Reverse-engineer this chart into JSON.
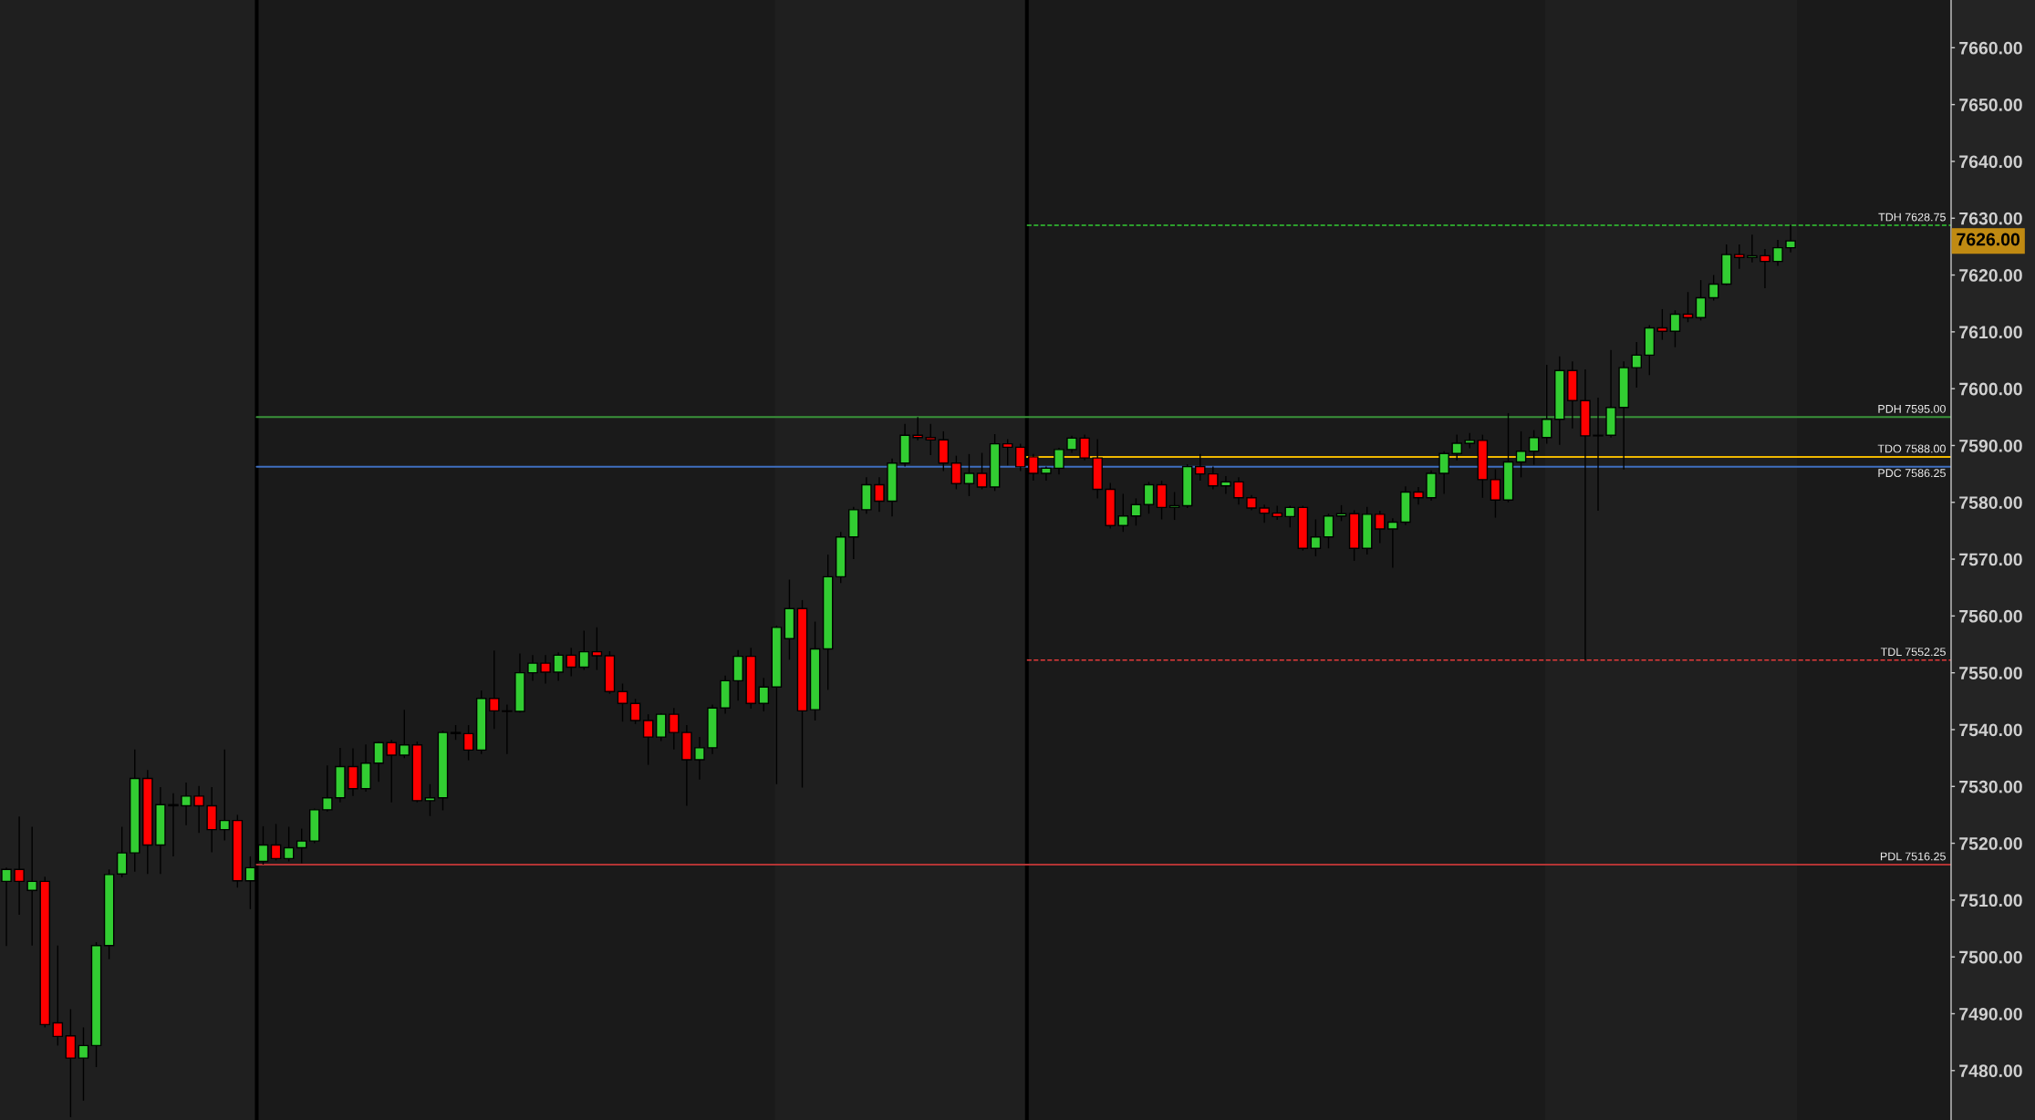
{
  "chart_data": {
    "type": "candlestick",
    "categories": [
      null,
      null,
      null,
      null,
      null,
      null,
      null,
      null,
      null,
      null,
      null,
      null,
      null,
      null,
      null,
      null,
      null,
      null,
      null,
      null,
      null,
      null,
      null,
      null,
      null,
      null,
      null,
      null,
      null,
      null,
      null,
      null,
      null,
      null,
      null,
      null,
      null,
      null,
      null,
      null,
      null,
      null,
      null,
      null,
      null,
      null,
      null,
      null,
      null,
      null,
      null,
      null,
      null,
      null,
      null,
      null,
      null,
      null,
      null,
      null,
      null,
      null,
      null,
      null,
      null,
      null,
      null,
      null,
      null,
      null,
      null,
      null,
      null,
      null,
      null,
      null,
      null,
      null,
      null,
      null,
      null,
      null,
      null,
      null,
      null,
      null,
      null,
      null,
      null,
      null,
      null,
      null,
      null,
      null,
      null,
      null,
      null,
      null,
      null,
      null,
      null,
      null,
      null,
      null,
      null,
      null,
      null,
      null,
      null,
      null,
      null,
      null,
      null,
      null,
      null,
      null,
      null,
      null,
      null,
      null,
      null,
      null,
      null,
      null,
      null,
      null,
      null,
      null,
      null,
      null,
      null,
      null,
      null,
      null,
      null,
      null,
      null,
      null,
      null,
      null,
      null,
      null,
      null,
      null,
      null,
      null,
      null,
      null,
      null,
      null,
      null,
      null
    ],
    "ohlc": [
      [
        7513.3,
        7515.7,
        7501.9,
        7515.4
      ],
      [
        7515.4,
        7524.7,
        7507.4,
        7513.3
      ],
      [
        7511.7,
        7522.9,
        7502.0,
        7513.3
      ],
      [
        7513.3,
        7514.1,
        7487.6,
        7488.1
      ],
      [
        7488.4,
        7502.0,
        7484.4,
        7486.0
      ],
      [
        7486.1,
        7490.8,
        7471.8,
        7482.2
      ],
      [
        7482.2,
        7487.6,
        7474.7,
        7484.4
      ],
      [
        7484.4,
        7502.6,
        7480.6,
        7502.0
      ],
      [
        7502.0,
        7515.4,
        7499.6,
        7514.5
      ],
      [
        7514.6,
        7522.9,
        7514.0,
        7518.3
      ],
      [
        7518.3,
        7536.5,
        7515.0,
        7531.4
      ],
      [
        7531.4,
        7532.9,
        7514.6,
        7519.7
      ],
      [
        7519.7,
        7529.9,
        7514.6,
        7526.8
      ],
      [
        7526.8,
        7528.8,
        7517.7,
        7526.6
      ],
      [
        7526.6,
        7530.7,
        7523.2,
        7528.3
      ],
      [
        7528.3,
        7530.1,
        7521.8,
        7526.6
      ],
      [
        7526.6,
        7529.9,
        7518.4,
        7522.4
      ],
      [
        7522.4,
        7536.5,
        7520.5,
        7524.0
      ],
      [
        7524.0,
        7525.0,
        7512.2,
        7513.4
      ],
      [
        7513.4,
        7517.7,
        7508.4,
        7515.7
      ],
      [
        7516.8,
        7523.0,
        7516.25,
        7519.7
      ],
      [
        7519.7,
        7523.4,
        7517.0,
        7517.3
      ],
      [
        7517.3,
        7522.9,
        7516.8,
        7519.2
      ],
      [
        7519.2,
        7522.6,
        7516.5,
        7520.4
      ],
      [
        7520.4,
        7526.1,
        7520.0,
        7525.9
      ],
      [
        7525.9,
        7533.7,
        7525.6,
        7528.0
      ],
      [
        7528.0,
        7536.8,
        7527.2,
        7533.5
      ],
      [
        7533.5,
        7536.7,
        7528.3,
        7529.6
      ],
      [
        7529.6,
        7537.4,
        7529.1,
        7534.1
      ],
      [
        7534.1,
        7537.9,
        7530.8,
        7537.7
      ],
      [
        7537.7,
        7538.2,
        7527.2,
        7535.5
      ],
      [
        7535.5,
        7543.5,
        7535.0,
        7537.3
      ],
      [
        7537.3,
        7537.9,
        7527.2,
        7527.5
      ],
      [
        7527.5,
        7530.4,
        7524.8,
        7528.0
      ],
      [
        7528.0,
        7539.8,
        7525.8,
        7539.5
      ],
      [
        7539.5,
        7540.8,
        7538.2,
        7539.3
      ],
      [
        7539.3,
        7540.8,
        7534.6,
        7536.4
      ],
      [
        7536.4,
        7546.9,
        7535.7,
        7545.5
      ],
      [
        7545.5,
        7553.9,
        7540.1,
        7543.3
      ],
      [
        7543.3,
        7544.4,
        7535.7,
        7543.2
      ],
      [
        7543.2,
        7553.4,
        7543.0,
        7550.0
      ],
      [
        7550.0,
        7553.1,
        7548.6,
        7551.7
      ],
      [
        7551.7,
        7553.1,
        7548.1,
        7550.1
      ],
      [
        7550.1,
        7553.6,
        7548.6,
        7553.1
      ],
      [
        7553.1,
        7554.4,
        7549.4,
        7551.0
      ],
      [
        7551.0,
        7557.4,
        7550.5,
        7553.7
      ],
      [
        7553.7,
        7558.0,
        7550.5,
        7553.0
      ],
      [
        7553.0,
        7553.8,
        7546.3,
        7546.7
      ],
      [
        7546.7,
        7548.1,
        7541.4,
        7544.6
      ],
      [
        7544.6,
        7545.4,
        7541.0,
        7541.6
      ],
      [
        7541.6,
        7542.7,
        7533.8,
        7538.7
      ],
      [
        7538.7,
        7542.9,
        7538.0,
        7542.7
      ],
      [
        7542.7,
        7543.8,
        7536.5,
        7539.5
      ],
      [
        7539.5,
        7540.8,
        7526.6,
        7534.7
      ],
      [
        7534.7,
        7538.7,
        7531.2,
        7536.8
      ],
      [
        7536.8,
        7544.4,
        7535.7,
        7543.8
      ],
      [
        7543.8,
        7549.5,
        7542.8,
        7548.6
      ],
      [
        7548.6,
        7554.0,
        7545.1,
        7552.9
      ],
      [
        7552.9,
        7554.4,
        7543.7,
        7544.6
      ],
      [
        7544.6,
        7549.1,
        7543.2,
        7547.5
      ],
      [
        7547.5,
        7558.3,
        7530.4,
        7558.0
      ],
      [
        7556.0,
        7566.4,
        7552.3,
        7561.3
      ],
      [
        7561.3,
        7562.8,
        7529.8,
        7543.3
      ],
      [
        7543.5,
        7559.0,
        7541.6,
        7554.2
      ],
      [
        7554.2,
        7570.8,
        7547.0,
        7566.9
      ],
      [
        7566.9,
        7574.8,
        7565.8,
        7573.9
      ],
      [
        7573.9,
        7579.2,
        7570.0,
        7578.7
      ],
      [
        7578.7,
        7584.4,
        7578.0,
        7583.1
      ],
      [
        7583.1,
        7584.4,
        7578.3,
        7580.2
      ],
      [
        7580.2,
        7587.7,
        7577.5,
        7586.9
      ],
      [
        7586.9,
        7593.8,
        7586.3,
        7591.8
      ],
      [
        7591.8,
        7595.0,
        7590.9,
        7591.4
      ],
      [
        7591.4,
        7593.8,
        7588.3,
        7591.0
      ],
      [
        7591.0,
        7592.5,
        7585.5,
        7586.9
      ],
      [
        7586.9,
        7588.2,
        7582.3,
        7583.3
      ],
      [
        7583.3,
        7588.5,
        7581.1,
        7585.1
      ],
      [
        7585.1,
        7588.7,
        7582.3,
        7582.7
      ],
      [
        7582.7,
        7592.0,
        7582.0,
        7590.3
      ],
      [
        7590.3,
        7591.1,
        7586.5,
        7589.7
      ],
      [
        7589.7,
        7590.3,
        7585.5,
        7586.25
      ],
      [
        7588.0,
        7588.5,
        7583.8,
        7585.1
      ],
      [
        7585.1,
        7586.3,
        7583.8,
        7586.0
      ],
      [
        7586.0,
        7589.6,
        7584.9,
        7589.3
      ],
      [
        7589.3,
        7591.7,
        7588.7,
        7591.3
      ],
      [
        7591.3,
        7591.9,
        7587.4,
        7587.8
      ],
      [
        7587.8,
        7591.1,
        7580.7,
        7582.3
      ],
      [
        7582.3,
        7583.4,
        7575.4,
        7575.9
      ],
      [
        7575.9,
        7581.5,
        7574.8,
        7577.6
      ],
      [
        7577.6,
        7580.7,
        7575.9,
        7579.6
      ],
      [
        7579.6,
        7583.6,
        7578.0,
        7583.1
      ],
      [
        7583.1,
        7583.8,
        7577.0,
        7579.1
      ],
      [
        7579.1,
        7581.8,
        7576.9,
        7579.4
      ],
      [
        7579.4,
        7586.7,
        7579.0,
        7586.3
      ],
      [
        7586.3,
        7588.5,
        7583.8,
        7585.0
      ],
      [
        7585.0,
        7586.3,
        7582.3,
        7582.9
      ],
      [
        7582.9,
        7584.6,
        7581.5,
        7583.6
      ],
      [
        7583.6,
        7584.4,
        7579.6,
        7580.8
      ],
      [
        7580.8,
        7581.3,
        7578.6,
        7579.0
      ],
      [
        7579.0,
        7579.6,
        7576.4,
        7578.1
      ],
      [
        7578.1,
        7579.4,
        7576.9,
        7577.5
      ],
      [
        7577.5,
        7579.4,
        7575.6,
        7579.1
      ],
      [
        7579.1,
        7579.4,
        7571.5,
        7571.9
      ],
      [
        7571.9,
        7577.0,
        7570.5,
        7573.9
      ],
      [
        7573.9,
        7578.0,
        7571.9,
        7577.6
      ],
      [
        7577.6,
        7579.5,
        7576.7,
        7578.0
      ],
      [
        7578.0,
        7578.6,
        7569.7,
        7571.9
      ],
      [
        7571.9,
        7579.2,
        7570.8,
        7577.9
      ],
      [
        7577.9,
        7578.5,
        7572.8,
        7575.3
      ],
      [
        7575.3,
        7577.2,
        7568.5,
        7576.5
      ],
      [
        7576.5,
        7582.8,
        7576.0,
        7581.8
      ],
      [
        7581.8,
        7582.7,
        7579.6,
        7580.8
      ],
      [
        7580.8,
        7585.6,
        7580.3,
        7585.1
      ],
      [
        7585.1,
        7589.0,
        7581.5,
        7588.6
      ],
      [
        7588.6,
        7591.9,
        7587.4,
        7590.4
      ],
      [
        7590.4,
        7592.2,
        7589.5,
        7590.9
      ],
      [
        7590.9,
        7591.9,
        7580.8,
        7584.0
      ],
      [
        7584.0,
        7585.8,
        7577.3,
        7580.4
      ],
      [
        7580.4,
        7595.7,
        7580.0,
        7587.1
      ],
      [
        7587.1,
        7592.5,
        7584.4,
        7589.0
      ],
      [
        7589.0,
        7592.7,
        7586.6,
        7591.4
      ],
      [
        7591.4,
        7604.2,
        7590.3,
        7594.6
      ],
      [
        7594.6,
        7605.7,
        7590.1,
        7603.2
      ],
      [
        7603.2,
        7604.8,
        7593.0,
        7597.9
      ],
      [
        7597.9,
        7603.4,
        7552.25,
        7591.7
      ],
      [
        7591.7,
        7598.4,
        7578.5,
        7591.8
      ],
      [
        7591.8,
        7606.8,
        7591.4,
        7596.7
      ],
      [
        7596.7,
        7604.8,
        7585.8,
        7603.7
      ],
      [
        7603.7,
        7608.2,
        7600.2,
        7605.9
      ],
      [
        7605.9,
        7611.2,
        7602.4,
        7610.7
      ],
      [
        7610.7,
        7614.0,
        7608.6,
        7610.1
      ],
      [
        7610.1,
        7613.8,
        7607.3,
        7613.1
      ],
      [
        7613.1,
        7617.0,
        7611.7,
        7612.5
      ],
      [
        7612.5,
        7619.1,
        7612.0,
        7616.0
      ],
      [
        7616.0,
        7620.0,
        7615.5,
        7618.4
      ],
      [
        7618.4,
        7625.4,
        7618.2,
        7623.6
      ],
      [
        7623.6,
        7625.4,
        7621.1,
        7623.1
      ],
      [
        7623.1,
        7627.1,
        7622.2,
        7623.4
      ],
      [
        7623.4,
        7624.6,
        7617.7,
        7622.4
      ],
      [
        7622.4,
        7626.2,
        7621.6,
        7624.8
      ],
      [
        7624.8,
        7628.75,
        7624.0,
        7626.0
      ],
      null,
      null,
      null,
      null,
      null,
      null,
      null,
      null,
      null,
      null,
      null,
      null
    ],
    "colors": [
      "#32cd32",
      "#ff0000",
      "#32cd32",
      "#ff0000",
      "#ff0000",
      "#ff0000",
      "#32cd32",
      "#32cd32",
      "#32cd32",
      "#32cd32",
      "#32cd32",
      "#ff0000",
      "#32cd32",
      "#ff0000",
      "#32cd32",
      "#ff0000",
      "#ff0000",
      "#32cd32",
      "#ff0000",
      "#32cd32",
      "#32cd32",
      "#ff0000",
      "#32cd32",
      "#32cd32",
      "#32cd32",
      "#32cd32",
      "#32cd32",
      "#ff0000",
      "#32cd32",
      "#32cd32",
      "#ff0000",
      "#32cd32",
      "#ff0000",
      "#32cd32",
      "#32cd32",
      "#ff0000",
      "#ff0000",
      "#32cd32",
      "#ff0000",
      "#ff0000",
      "#32cd32",
      "#32cd32",
      "#ff0000",
      "#32cd32",
      "#ff0000",
      "#32cd32",
      "#ff0000",
      "#ff0000",
      "#ff0000",
      "#ff0000",
      "#ff0000",
      "#32cd32",
      "#ff0000",
      "#ff0000",
      "#32cd32",
      "#32cd32",
      "#32cd32",
      "#32cd32",
      "#ff0000",
      "#32cd32",
      "#32cd32",
      "#32cd32",
      "#ff0000",
      "#32cd32",
      "#32cd32",
      "#32cd32",
      "#32cd32",
      "#32cd32",
      "#ff0000",
      "#32cd32",
      "#32cd32",
      "#ff0000",
      "#ff0000",
      "#ff0000",
      "#ff0000",
      "#32cd32",
      "#ff0000",
      "#32cd32",
      "#ff0000",
      "#ff0000",
      "#ff0000",
      "#32cd32",
      "#32cd32",
      "#32cd32",
      "#ff0000",
      "#ff0000",
      "#ff0000",
      "#32cd32",
      "#32cd32",
      "#32cd32",
      "#ff0000",
      "#32cd32",
      "#32cd32",
      "#ff0000",
      "#ff0000",
      "#32cd32",
      "#ff0000",
      "#ff0000",
      "#ff0000",
      "#ff0000",
      "#32cd32",
      "#ff0000",
      "#32cd32",
      "#32cd32",
      "#32cd32",
      "#ff0000",
      "#32cd32",
      "#ff0000",
      "#32cd32",
      "#32cd32",
      "#ff0000",
      "#32cd32",
      "#32cd32",
      "#32cd32",
      "#32cd32",
      "#ff0000",
      "#ff0000",
      "#32cd32",
      "#32cd32",
      "#32cd32",
      "#32cd32",
      "#32cd32",
      "#ff0000",
      "#ff0000",
      "#32cd32",
      "#32cd32",
      "#32cd32",
      "#32cd32",
      "#32cd32",
      "#ff0000",
      "#32cd32",
      "#ff0000",
      "#32cd32",
      "#32cd32",
      "#32cd32",
      "#ff0000",
      "#32cd32",
      "#ff0000",
      "#32cd32",
      "#32cd32",
      null,
      null,
      null,
      null,
      null,
      null,
      null,
      null,
      null,
      null,
      null,
      null
    ],
    "ylim": [
      7471.3,
      7668.4
    ],
    "yticks": [
      {
        "value": 7480,
        "label": "7480.00"
      },
      {
        "value": 7490,
        "label": "7490.00"
      },
      {
        "value": 7500,
        "label": "7500.00"
      },
      {
        "value": 7510,
        "label": "7510.00"
      },
      {
        "value": 7520,
        "label": "7520.00"
      },
      {
        "value": 7530,
        "label": "7530.00"
      },
      {
        "value": 7540,
        "label": "7540.00"
      },
      {
        "value": 7550,
        "label": "7550.00"
      },
      {
        "value": 7560,
        "label": "7560.00"
      },
      {
        "value": 7570,
        "label": "7570.00"
      },
      {
        "value": 7580,
        "label": "7580.00"
      },
      {
        "value": 7590,
        "label": "7590.00"
      },
      {
        "value": 7600,
        "label": "7600.00"
      },
      {
        "value": 7610,
        "label": "7610.00"
      },
      {
        "value": 7620,
        "label": "7620.00"
      },
      {
        "value": 7630,
        "label": "7630.00"
      },
      {
        "value": 7640,
        "label": "7640.00"
      },
      {
        "value": 7650,
        "label": "7650.00"
      },
      {
        "value": 7660,
        "label": "7660.00"
      }
    ],
    "tick_labels": "y",
    "ref_lines": [
      {
        "axis": "y",
        "value": 7628.75,
        "label": "TDH 7628.75",
        "color": "#33cc33",
        "line_style": "dashed"
      },
      {
        "axis": "y",
        "value": 7595.0,
        "label": "PDH 7595.00",
        "color": "#3a933a",
        "line_style": "solid"
      },
      {
        "axis": "y",
        "value": 7588.0,
        "label": "TDO 7588.00",
        "color": "#f0b800",
        "line_style": "solid"
      },
      {
        "axis": "y",
        "value": 7586.25,
        "label": "PDC 7586.25",
        "color": "#3f6fc0",
        "line_style": "solid"
      },
      {
        "axis": "y",
        "value": 7552.25,
        "label": "TDL 7552.25",
        "color": "#e23a3a",
        "line_style": "dashed"
      },
      {
        "axis": "y",
        "value": 7516.25,
        "label": "PDL 7516.25",
        "color": "#b33434",
        "line_style": "solid"
      }
    ],
    "annotations": [
      "7626.00"
    ]
  }
}
